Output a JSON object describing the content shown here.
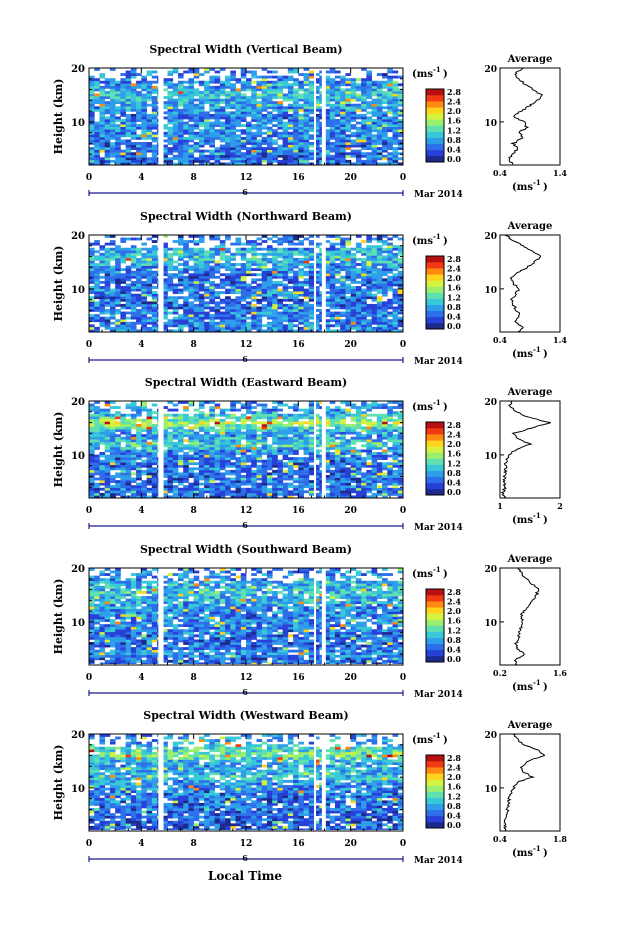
{
  "common": {
    "ylabel": "Height (km)",
    "cb_unit": "(ms",
    "cb_unit_exp": "-1",
    "cb_unit_close": ")",
    "date_label": "Mar 2014",
    "day_label": "6",
    "xlabel": "Local Time",
    "avg_title": "Average",
    "avg_unit": "(ms",
    "avg_unit_exp": "-1",
    "avg_unit_close": ")",
    "y_ticks": [
      "20",
      "10"
    ],
    "x_ticks": [
      "0",
      "4",
      "8",
      "12",
      "16",
      "20",
      "0"
    ],
    "cb_ticks": [
      "2.8",
      "2.4",
      "2.0",
      "1.6",
      "1.2",
      "0.8",
      "0.4",
      "0.0"
    ]
  },
  "colors": {
    "colormap": [
      "#1c2a8c",
      "#2741d8",
      "#2d6fe8",
      "#2f9eea",
      "#38c8d8",
      "#5fe0b0",
      "#9aef6e",
      "#d6f240",
      "#ffd21c",
      "#ff8a12",
      "#f13a12",
      "#b80f12"
    ],
    "gap": "#ffffff",
    "axis": "#000000",
    "bracket": "#1a1a8c"
  },
  "chart_data": [
    {
      "type": "heatmap",
      "title": "Spectral Width (Vertical Beam)",
      "x_range_hours": [
        0,
        24
      ],
      "y_range_km": [
        2,
        20
      ],
      "colorbar_range_ms": [
        0.0,
        3.0
      ],
      "gaps_hours": [
        [
          5.3,
          5.7
        ],
        [
          17.2,
          17.3
        ],
        [
          17.8,
          18.1
        ]
      ],
      "average_profile": {
        "xlim": [
          0.4,
          1.4
        ],
        "xtick_labels": [
          "0.4",
          "1.4"
        ],
        "ylim": [
          2,
          20
        ],
        "height_km": [
          2,
          3,
          4,
          5,
          6,
          7,
          8,
          9,
          10,
          11,
          12,
          13,
          14,
          15,
          16,
          17,
          18,
          19,
          20
        ],
        "value_ms": [
          0.62,
          0.55,
          0.6,
          0.7,
          0.62,
          0.78,
          0.72,
          0.85,
          0.8,
          0.62,
          0.75,
          0.9,
          1.02,
          1.1,
          0.95,
          0.82,
          0.7,
          0.65,
          0.78
        ]
      }
    },
    {
      "type": "heatmap",
      "title": "Spectral Width (Northward Beam)",
      "x_range_hours": [
        0,
        24
      ],
      "y_range_km": [
        2,
        20
      ],
      "colorbar_range_ms": [
        0.0,
        3.0
      ],
      "gaps_hours": [
        [
          5.3,
          5.7
        ],
        [
          17.2,
          17.3
        ],
        [
          17.8,
          18.1
        ]
      ],
      "average_profile": {
        "xlim": [
          0.4,
          1.4
        ],
        "xtick_labels": [
          "0.4",
          "1.4"
        ],
        "ylim": [
          2,
          20
        ],
        "height_km": [
          2,
          3,
          4,
          5,
          6,
          7,
          8,
          9,
          10,
          11,
          12,
          13,
          14,
          15,
          16,
          17,
          18,
          19,
          20
        ],
        "value_ms": [
          0.7,
          0.78,
          0.65,
          0.72,
          0.68,
          0.62,
          0.6,
          0.66,
          0.72,
          0.62,
          0.58,
          0.7,
          0.85,
          0.98,
          1.1,
          0.95,
          0.78,
          0.62,
          0.5
        ]
      }
    },
    {
      "type": "heatmap",
      "title": "Spectral Width (Eastward Beam)",
      "x_range_hours": [
        0,
        24
      ],
      "y_range_km": [
        2,
        20
      ],
      "colorbar_range_ms": [
        0.0,
        3.0
      ],
      "gaps_hours": [
        [
          5.3,
          5.7
        ],
        [
          17.2,
          17.3
        ],
        [
          17.8,
          18.1
        ]
      ],
      "average_profile": {
        "xlim": [
          0.5,
          2.0
        ],
        "xtick_labels": [
          "1",
          "2"
        ],
        "ylim": [
          2,
          20
        ],
        "height_km": [
          2,
          3,
          4,
          5,
          6,
          7,
          8,
          9,
          10,
          11,
          12,
          13,
          14,
          15,
          16,
          17,
          18,
          19,
          20
        ],
        "value_ms": [
          0.6,
          0.58,
          0.62,
          0.6,
          0.62,
          0.63,
          0.64,
          0.66,
          0.7,
          0.9,
          1.25,
          0.95,
          0.85,
          1.3,
          1.75,
          1.2,
          0.9,
          0.75,
          0.8
        ]
      }
    },
    {
      "type": "heatmap",
      "title": "Spectral Width (Southward Beam)",
      "x_range_hours": [
        0,
        24
      ],
      "y_range_km": [
        2,
        20
      ],
      "colorbar_range_ms": [
        0.0,
        3.0
      ],
      "gaps_hours": [
        [
          5.3,
          5.7
        ],
        [
          17.2,
          17.3
        ],
        [
          17.8,
          18.1
        ]
      ],
      "average_profile": {
        "xlim": [
          0.2,
          1.6
        ],
        "xtick_labels": [
          "0.2",
          "1.6"
        ],
        "ylim": [
          2,
          20
        ],
        "height_km": [
          2,
          3,
          4,
          5,
          6,
          7,
          8,
          9,
          10,
          11,
          12,
          13,
          14,
          15,
          16,
          17,
          18,
          19,
          20
        ],
        "value_ms": [
          0.6,
          0.55,
          0.78,
          0.6,
          0.58,
          0.62,
          0.65,
          0.7,
          0.72,
          0.68,
          0.75,
          0.85,
          0.95,
          1.05,
          1.1,
          0.95,
          0.82,
          0.7,
          0.65
        ]
      }
    },
    {
      "type": "heatmap",
      "title": "Spectral Width (Westward Beam)",
      "x_range_hours": [
        0,
        24
      ],
      "y_range_km": [
        2,
        20
      ],
      "colorbar_range_ms": [
        0.0,
        3.0
      ],
      "gaps_hours": [
        [
          5.3,
          5.7
        ],
        [
          17.2,
          17.3
        ],
        [
          17.8,
          18.1
        ]
      ],
      "average_profile": {
        "xlim": [
          0.4,
          1.8
        ],
        "xtick_labels": [
          "0.4",
          "1.8"
        ],
        "ylim": [
          2,
          20
        ],
        "height_km": [
          2,
          3,
          4,
          5,
          6,
          7,
          8,
          9,
          10,
          11,
          12,
          13,
          14,
          15,
          16,
          17,
          18,
          19,
          20
        ],
        "value_ms": [
          0.55,
          0.5,
          0.52,
          0.55,
          0.58,
          0.6,
          0.62,
          0.66,
          0.72,
          0.8,
          1.15,
          0.95,
          0.9,
          1.05,
          1.45,
          1.3,
          0.95,
          0.8,
          0.7
        ]
      }
    }
  ]
}
